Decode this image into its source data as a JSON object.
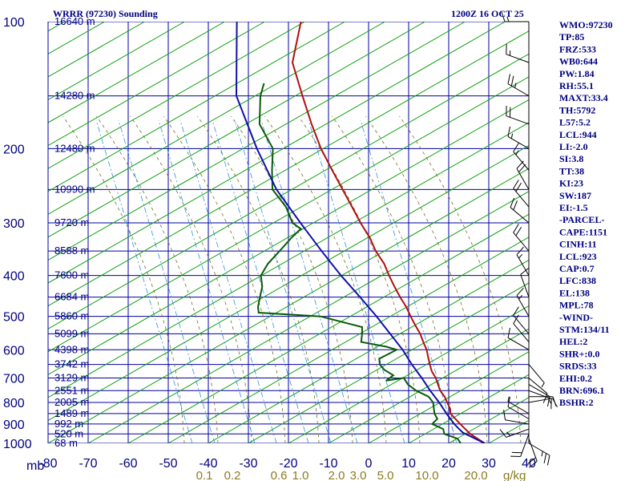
{
  "chart_data": {
    "type": "skew-t",
    "title": "WRRR (97230) Sounding",
    "valid_time": "1200Z 16 OCT 25",
    "pressure_axis_unit": "mb",
    "pressure_ticks": [
      100,
      200,
      300,
      400,
      500,
      600,
      700,
      800,
      900,
      1000
    ],
    "temperature_ticks": [
      -80,
      -70,
      -60,
      -50,
      -40,
      -30,
      -20,
      -10,
      0,
      10,
      20,
      30,
      40
    ],
    "mixing_ratio_labels": [
      "0.1",
      "0.2",
      "0.6",
      "1.0",
      "2.0",
      "3.0",
      "5.0",
      "10.0",
      "20.0"
    ],
    "mixing_ratio_unit": "g/kg",
    "height_labels": [
      {
        "p": 100,
        "label": "16640 m"
      },
      {
        "p": 150,
        "label": "14280 m"
      },
      {
        "p": 200,
        "label": "12480 m"
      },
      {
        "p": 250,
        "label": "10990 m"
      },
      {
        "p": 300,
        "label": "9720 m"
      },
      {
        "p": 350,
        "label": "8588 m"
      },
      {
        "p": 400,
        "label": "7600 m"
      },
      {
        "p": 450,
        "label": "6684 m"
      },
      {
        "p": 500,
        "label": "5860 m"
      },
      {
        "p": 550,
        "label": "5099 m"
      },
      {
        "p": 600,
        "label": "4398 m"
      },
      {
        "p": 650,
        "label": "3742 m"
      },
      {
        "p": 700,
        "label": "3129 m"
      },
      {
        "p": 750,
        "label": "2551 m"
      },
      {
        "p": 800,
        "label": "2005 m"
      },
      {
        "p": 850,
        "label": "1489 m"
      },
      {
        "p": 900,
        "label": "992 m"
      },
      {
        "p": 950,
        "label": "520 m"
      },
      {
        "p": 1000,
        "label": "68 m"
      }
    ],
    "series": [
      {
        "name": "temperature",
        "color": "#b01010",
        "points": [
          [
            1000,
            29
          ],
          [
            975,
            26.5
          ],
          [
            950,
            24
          ],
          [
            925,
            22
          ],
          [
            900,
            20
          ],
          [
            875,
            18
          ],
          [
            850,
            16
          ],
          [
            825,
            15
          ],
          [
            800,
            13.5
          ],
          [
            775,
            12
          ],
          [
            750,
            10
          ],
          [
            725,
            8.5
          ],
          [
            700,
            7
          ],
          [
            675,
            5
          ],
          [
            650,
            3.5
          ],
          [
            625,
            2
          ],
          [
            600,
            0.5
          ],
          [
            575,
            -1.5
          ],
          [
            550,
            -3.5
          ],
          [
            525,
            -6
          ],
          [
            500,
            -8.5
          ],
          [
            475,
            -11
          ],
          [
            450,
            -14
          ],
          [
            425,
            -17
          ],
          [
            400,
            -20
          ],
          [
            375,
            -23
          ],
          [
            350,
            -27
          ],
          [
            325,
            -30.5
          ],
          [
            300,
            -35
          ],
          [
            275,
            -39.5
          ],
          [
            250,
            -44.5
          ],
          [
            225,
            -50
          ],
          [
            200,
            -56
          ],
          [
            175,
            -62
          ],
          [
            150,
            -68.5
          ],
          [
            125,
            -76
          ],
          [
            100,
            -80
          ]
        ]
      },
      {
        "name": "dewpoint",
        "color": "#0a5a0a",
        "points": [
          [
            1000,
            23
          ],
          [
            975,
            21.5
          ],
          [
            950,
            17.5
          ],
          [
            925,
            16.5
          ],
          [
            900,
            13
          ],
          [
            875,
            13.5
          ],
          [
            850,
            12
          ],
          [
            825,
            11
          ],
          [
            800,
            10
          ],
          [
            775,
            8
          ],
          [
            750,
            4
          ],
          [
            725,
            1
          ],
          [
            700,
            -1
          ],
          [
            710,
            -5
          ],
          [
            690,
            -4
          ],
          [
            670,
            -7
          ],
          [
            650,
            -9
          ],
          [
            630,
            -10
          ],
          [
            610,
            -8
          ],
          [
            600,
            -7
          ],
          [
            590,
            -10
          ],
          [
            575,
            -17
          ],
          [
            550,
            -18
          ],
          [
            530,
            -19
          ],
          [
            500,
            -31
          ],
          [
            490,
            -47
          ],
          [
            475,
            -48
          ],
          [
            450,
            -49
          ],
          [
            425,
            -50
          ],
          [
            400,
            -52
          ],
          [
            375,
            -52
          ],
          [
            350,
            -51
          ],
          [
            325,
            -50
          ],
          [
            310,
            -49
          ],
          [
            300,
            -52
          ],
          [
            275,
            -56
          ],
          [
            250,
            -62
          ],
          [
            225,
            -65
          ],
          [
            200,
            -68
          ],
          [
            175,
            -75
          ],
          [
            150,
            -79
          ],
          [
            140,
            -80
          ]
        ]
      },
      {
        "name": "parcel",
        "color": "#1010a8",
        "points": [
          [
            1000,
            29
          ],
          [
            944,
            22
          ],
          [
            923,
            20.3
          ],
          [
            900,
            18.5
          ],
          [
            850,
            15
          ],
          [
            800,
            11.5
          ],
          [
            750,
            7.5
          ],
          [
            700,
            3.5
          ],
          [
            650,
            -1
          ],
          [
            600,
            -5.5
          ],
          [
            550,
            -11
          ],
          [
            500,
            -17
          ],
          [
            450,
            -24
          ],
          [
            400,
            -32
          ],
          [
            350,
            -40.5
          ],
          [
            300,
            -50
          ],
          [
            250,
            -61
          ],
          [
            200,
            -72
          ],
          [
            150,
            -85
          ],
          [
            100,
            -96
          ]
        ]
      }
    ],
    "wind_barbs": [
      {
        "p": 1000,
        "dir": 120,
        "spd": 25
      },
      {
        "p": 975,
        "dir": 160,
        "spd": 20
      },
      {
        "p": 950,
        "dir": 200,
        "spd": 20
      },
      {
        "p": 925,
        "dir": 250,
        "spd": 15
      },
      {
        "p": 900,
        "dir": 280,
        "spd": 10
      },
      {
        "p": 875,
        "dir": 300,
        "spd": 10
      },
      {
        "p": 850,
        "dir": 300,
        "spd": 5
      },
      {
        "p": 800,
        "dir": 80,
        "spd": 15
      },
      {
        "p": 775,
        "dir": 90,
        "spd": 10
      },
      {
        "p": 750,
        "dir": 110,
        "spd": 10
      },
      {
        "p": 725,
        "dir": 120,
        "spd": 10
      },
      {
        "p": 700,
        "dir": 130,
        "spd": 10
      },
      {
        "p": 650,
        "dir": 140,
        "spd": 5
      },
      {
        "p": 600,
        "dir": 300,
        "spd": 10
      },
      {
        "p": 575,
        "dir": 320,
        "spd": 10
      },
      {
        "p": 550,
        "dir": 320,
        "spd": 10
      },
      {
        "p": 500,
        "dir": 330,
        "spd": 15
      },
      {
        "p": 450,
        "dir": 340,
        "spd": 10
      },
      {
        "p": 400,
        "dir": 330,
        "spd": 15
      },
      {
        "p": 350,
        "dir": 320,
        "spd": 20
      },
      {
        "p": 300,
        "dir": 310,
        "spd": 20
      },
      {
        "p": 275,
        "dir": 320,
        "spd": 20
      },
      {
        "p": 250,
        "dir": 330,
        "spd": 20
      },
      {
        "p": 225,
        "dir": 320,
        "spd": 15
      },
      {
        "p": 200,
        "dir": 300,
        "spd": 15
      },
      {
        "p": 175,
        "dir": 290,
        "spd": 20
      },
      {
        "p": 150,
        "dir": 300,
        "spd": 25
      },
      {
        "p": 125,
        "dir": 290,
        "spd": 15
      },
      {
        "p": 100,
        "dir": 270,
        "spd": 15
      }
    ]
  },
  "indices": [
    "WMO:97230",
    "TP:85",
    "FRZ:533",
    "WB0:644",
    "PW:1.84",
    "RH:55.1",
    "MAXT:33.4",
    "TH:5792",
    "L57:5.2",
    "LCL:944",
    "LI:-2.0",
    "SI:3.8",
    "TT:38",
    "KI:23",
    "SW:187",
    "EI:-1.5",
    "-PARCEL-",
    "CAPE:1151",
    "CINH:11",
    "LCL:923",
    "CAP:0.7",
    "LFC:838",
    "EL:138",
    "MPL:78",
    "-WIND-",
    "STM:134/11",
    "HEL:2",
    "SHR+:0.0",
    "SRDS:33",
    "EHI:0.2",
    "BRN:696.1",
    "BSHR:2"
  ],
  "colors": {
    "isotherm": "#0000a0",
    "dry_adiabat": "#10a010",
    "moist_adiabat": "#707020",
    "mixing_ratio": "#3090e0",
    "text": "#000080"
  }
}
